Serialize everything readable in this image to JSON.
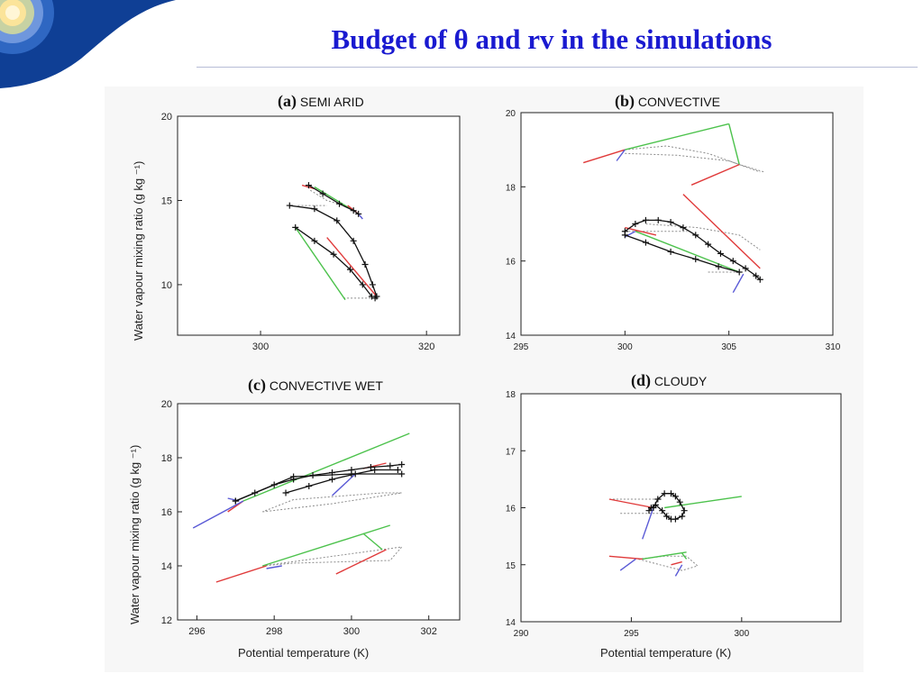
{
  "slide": {
    "title": "Budget of θ and rv in the simulations"
  },
  "colors": {
    "title": "#1a1ad0",
    "trajectory": "#111111",
    "green_vector": "#4cc24c",
    "red_vector": "#e03a3a",
    "blue_vector": "#5a5ad6",
    "grey_dotted": "#8c8c8c"
  },
  "chart_data": [
    {
      "id": "a",
      "type": "line",
      "panel_letter": "(a)",
      "panel_name": "SEMI ARID",
      "xlabel": "",
      "ylabel": "Water vapour mixing ratio (g kg ⁻¹)",
      "xlim": [
        290,
        324
      ],
      "ylim": [
        7,
        20
      ],
      "xticks": [
        300,
        320
      ],
      "yticks": [
        10,
        15,
        20
      ],
      "series": [
        {
          "kind": "trajectory",
          "x": [
            303.5,
            306.5,
            309.2,
            311.2,
            312.6,
            313.5,
            314.0,
            313.8
          ],
          "y": [
            14.7,
            14.5,
            13.8,
            12.6,
            11.2,
            10.0,
            9.3,
            9.2
          ]
        },
        {
          "kind": "trajectory",
          "x": [
            304.2,
            306.5,
            308.8,
            310.8,
            312.3,
            313.4
          ],
          "y": [
            13.4,
            12.6,
            11.8,
            10.9,
            10.0,
            9.3
          ]
        },
        {
          "kind": "trajectory",
          "x": [
            305.8,
            307.5,
            309.5,
            311.2,
            311.8
          ],
          "y": [
            15.9,
            15.4,
            14.8,
            14.4,
            14.2
          ]
        },
        {
          "kind": "grey",
          "x": [
            306.0,
            308.0,
            310.0,
            311.5
          ],
          "y": [
            15.6,
            15.0,
            14.7,
            14.3
          ]
        },
        {
          "kind": "grey",
          "x": [
            310.0,
            313.5
          ],
          "y": [
            9.2,
            9.2
          ]
        },
        {
          "kind": "grey",
          "x": [
            304.5,
            308.0
          ],
          "y": [
            14.7,
            14.7
          ]
        },
        {
          "kind": "green",
          "x": [
            304.2,
            310.2
          ],
          "y": [
            13.4,
            9.1
          ]
        },
        {
          "kind": "green",
          "x": [
            306.5,
            311.2
          ],
          "y": [
            15.8,
            14.4
          ]
        },
        {
          "kind": "red",
          "x": [
            308.0,
            314.0
          ],
          "y": [
            12.8,
            9.3
          ]
        },
        {
          "kind": "red",
          "x": [
            305.0,
            306.5
          ],
          "y": [
            15.9,
            15.7
          ]
        },
        {
          "kind": "red",
          "x": [
            310.5,
            311.8
          ],
          "y": [
            14.7,
            14.2
          ]
        },
        {
          "kind": "blue",
          "x": [
            311.8,
            312.3
          ],
          "y": [
            14.2,
            13.9
          ]
        }
      ]
    },
    {
      "id": "b",
      "type": "line",
      "panel_letter": "(b)",
      "panel_name": "CONVECTIVE",
      "xlabel": "",
      "ylabel": "",
      "xlim": [
        295,
        310
      ],
      "ylim": [
        14,
        20
      ],
      "xticks": [
        295,
        300,
        305,
        310
      ],
      "yticks": [
        14,
        16,
        18,
        20
      ],
      "series": [
        {
          "kind": "trajectory",
          "x": [
            300.0,
            300.5,
            301.0,
            301.6,
            302.2,
            302.8,
            303.4,
            304.0,
            304.6,
            305.2,
            305.8,
            306.3,
            306.5
          ],
          "y": [
            16.8,
            17.0,
            17.1,
            17.1,
            17.05,
            16.9,
            16.7,
            16.45,
            16.2,
            16.0,
            15.8,
            15.6,
            15.5
          ]
        },
        {
          "kind": "trajectory",
          "x": [
            300.0,
            301.0,
            302.2,
            303.4,
            304.5,
            305.5
          ],
          "y": [
            16.7,
            16.5,
            16.25,
            16.05,
            15.85,
            15.7
          ]
        },
        {
          "kind": "grey",
          "x": [
            300.0,
            302.0,
            304.0,
            305.5,
            306.7
          ],
          "y": [
            19.0,
            19.1,
            18.9,
            18.6,
            18.4
          ]
        },
        {
          "kind": "grey",
          "x": [
            300.0,
            302.5,
            305.0,
            306.5
          ],
          "y": [
            18.9,
            18.85,
            18.7,
            18.4
          ]
        },
        {
          "kind": "grey",
          "x": [
            301.0,
            303.5,
            305.5,
            306.5
          ],
          "y": [
            17.0,
            16.9,
            16.7,
            16.3
          ]
        },
        {
          "kind": "grey",
          "x": [
            300.0,
            303.0
          ],
          "y": [
            16.8,
            16.8
          ]
        },
        {
          "kind": "grey",
          "x": [
            304.0,
            305.5
          ],
          "y": [
            15.7,
            15.7
          ]
        },
        {
          "kind": "green",
          "x": [
            300.0,
            305.0
          ],
          "y": [
            19.0,
            19.7
          ]
        },
        {
          "kind": "green",
          "x": [
            305.0,
            305.5
          ],
          "y": [
            19.7,
            18.6
          ]
        },
        {
          "kind": "green",
          "x": [
            300.5,
            305.5
          ],
          "y": [
            16.8,
            15.7
          ]
        },
        {
          "kind": "red",
          "x": [
            298.0,
            300.0
          ],
          "y": [
            18.65,
            19.0
          ]
        },
        {
          "kind": "red",
          "x": [
            303.2,
            305.5
          ],
          "y": [
            18.05,
            18.6
          ]
        },
        {
          "kind": "red",
          "x": [
            302.8,
            306.5
          ],
          "y": [
            17.8,
            15.8
          ]
        },
        {
          "kind": "red",
          "x": [
            300.0,
            301.5
          ],
          "y": [
            16.9,
            16.7
          ]
        },
        {
          "kind": "blue",
          "x": [
            299.6,
            300.0
          ],
          "y": [
            18.7,
            19.0
          ]
        },
        {
          "kind": "blue",
          "x": [
            305.2,
            305.7
          ],
          "y": [
            15.15,
            15.65
          ]
        },
        {
          "kind": "blue",
          "x": [
            300.0,
            300.5
          ],
          "y": [
            16.65,
            16.8
          ]
        }
      ]
    },
    {
      "id": "c",
      "type": "line",
      "panel_letter": "(c)",
      "panel_name": "CONVECTIVE WET",
      "xlabel": "Potential temperature (K)",
      "ylabel": "Water vapour mixing ratio (g kg ⁻¹)",
      "xlim": [
        295.5,
        302.8
      ],
      "ylim": [
        12,
        20
      ],
      "xticks": [
        296,
        298,
        300,
        302
      ],
      "yticks": [
        12,
        14,
        16,
        18,
        20
      ],
      "series": [
        {
          "kind": "trajectory",
          "x": [
            297.0,
            297.5,
            298.0,
            298.5,
            299.0,
            299.5,
            300.0,
            300.5,
            301.0,
            301.3
          ],
          "y": [
            16.4,
            16.7,
            17.0,
            17.2,
            17.35,
            17.45,
            17.55,
            17.65,
            17.7,
            17.75
          ]
        },
        {
          "kind": "trajectory",
          "x": [
            298.3,
            298.9,
            299.5,
            300.1,
            300.6,
            301.2
          ],
          "y": [
            16.7,
            16.95,
            17.2,
            17.4,
            17.55,
            17.55
          ]
        },
        {
          "kind": "trajectory",
          "x": [
            297.0,
            298.5,
            300.0,
            301.3
          ],
          "y": [
            16.4,
            17.3,
            17.4,
            17.4
          ]
        },
        {
          "kind": "grey",
          "x": [
            297.7,
            299.5,
            301.3,
            300.8,
            298.5,
            297.7
          ],
          "y": [
            16.0,
            16.3,
            16.7,
            16.7,
            16.45,
            16.0
          ]
        },
        {
          "kind": "grey",
          "x": [
            297.7,
            300.0,
            301.3,
            301.0,
            298.5,
            297.7
          ],
          "y": [
            14.0,
            14.45,
            14.7,
            14.2,
            14.1,
            14.0
          ]
        },
        {
          "kind": "green",
          "x": [
            297.2,
            301.5
          ],
          "y": [
            16.4,
            18.9
          ]
        },
        {
          "kind": "green",
          "x": [
            297.7,
            301.0
          ],
          "y": [
            14.0,
            15.5
          ]
        },
        {
          "kind": "green",
          "x": [
            300.3,
            300.8
          ],
          "y": [
            15.2,
            14.6
          ]
        },
        {
          "kind": "red",
          "x": [
            296.5,
            297.8
          ],
          "y": [
            13.4,
            14.0
          ]
        },
        {
          "kind": "red",
          "x": [
            299.6,
            300.9
          ],
          "y": [
            13.7,
            14.6
          ]
        },
        {
          "kind": "red",
          "x": [
            300.3,
            300.9
          ],
          "y": [
            17.6,
            17.8
          ]
        },
        {
          "kind": "red",
          "x": [
            296.8,
            297.2
          ],
          "y": [
            16.0,
            16.4
          ]
        },
        {
          "kind": "blue",
          "x": [
            295.9,
            297.2
          ],
          "y": [
            15.4,
            16.4
          ]
        },
        {
          "kind": "blue",
          "x": [
            296.8,
            297.1
          ],
          "y": [
            16.5,
            16.4
          ]
        },
        {
          "kind": "blue",
          "x": [
            299.5,
            300.1
          ],
          "y": [
            16.6,
            17.4
          ]
        },
        {
          "kind": "blue",
          "x": [
            297.8,
            298.2
          ],
          "y": [
            13.9,
            14.0
          ]
        }
      ]
    },
    {
      "id": "d",
      "type": "line",
      "panel_letter": "(d)",
      "panel_name": "CLOUDY",
      "xlabel": "Potential temperature (K)",
      "ylabel": "",
      "xlim": [
        290,
        304.5
      ],
      "ylim": [
        14,
        18
      ],
      "xticks": [
        290,
        295,
        300
      ],
      "yticks": [
        14,
        15,
        16,
        17,
        18
      ],
      "series": [
        {
          "kind": "trajectory",
          "x": [
            296.0,
            296.2,
            296.5,
            296.8,
            297.0,
            297.2,
            297.4,
            297.3,
            297.0,
            296.8,
            296.6,
            296.4,
            296.1,
            295.9,
            295.8
          ],
          "y": [
            16.0,
            16.15,
            16.25,
            16.25,
            16.2,
            16.1,
            15.95,
            15.85,
            15.8,
            15.8,
            15.85,
            15.95,
            16.05,
            16.0,
            15.95
          ]
        },
        {
          "kind": "grey",
          "x": [
            294.0,
            296.4
          ],
          "y": [
            16.15,
            16.15
          ]
        },
        {
          "kind": "grey",
          "x": [
            294.5,
            296.8
          ],
          "y": [
            15.9,
            15.9
          ]
        },
        {
          "kind": "grey",
          "x": [
            295.3,
            296.5,
            297.5,
            298.0,
            297.3,
            296.3,
            295.3
          ],
          "y": [
            15.1,
            15.15,
            15.15,
            14.98,
            14.9,
            15.0,
            15.1
          ]
        },
        {
          "kind": "green",
          "x": [
            296.5,
            300.0
          ],
          "y": [
            16.0,
            16.2
          ]
        },
        {
          "kind": "green",
          "x": [
            295.5,
            297.5
          ],
          "y": [
            15.1,
            15.22
          ]
        },
        {
          "kind": "green",
          "x": [
            297.3,
            297.5
          ],
          "y": [
            15.2,
            15.1
          ]
        },
        {
          "kind": "red",
          "x": [
            294.0,
            296.0
          ],
          "y": [
            16.15,
            16.0
          ]
        },
        {
          "kind": "red",
          "x": [
            294.0,
            295.5
          ],
          "y": [
            15.15,
            15.1
          ]
        },
        {
          "kind": "red",
          "x": [
            296.8,
            297.3
          ],
          "y": [
            15.0,
            15.05
          ]
        },
        {
          "kind": "blue",
          "x": [
            295.5,
            296.0
          ],
          "y": [
            15.45,
            16.0
          ]
        },
        {
          "kind": "blue",
          "x": [
            294.5,
            295.2
          ],
          "y": [
            14.9,
            15.1
          ]
        },
        {
          "kind": "blue",
          "x": [
            297.0,
            297.3
          ],
          "y": [
            14.8,
            15.0
          ]
        }
      ]
    }
  ]
}
